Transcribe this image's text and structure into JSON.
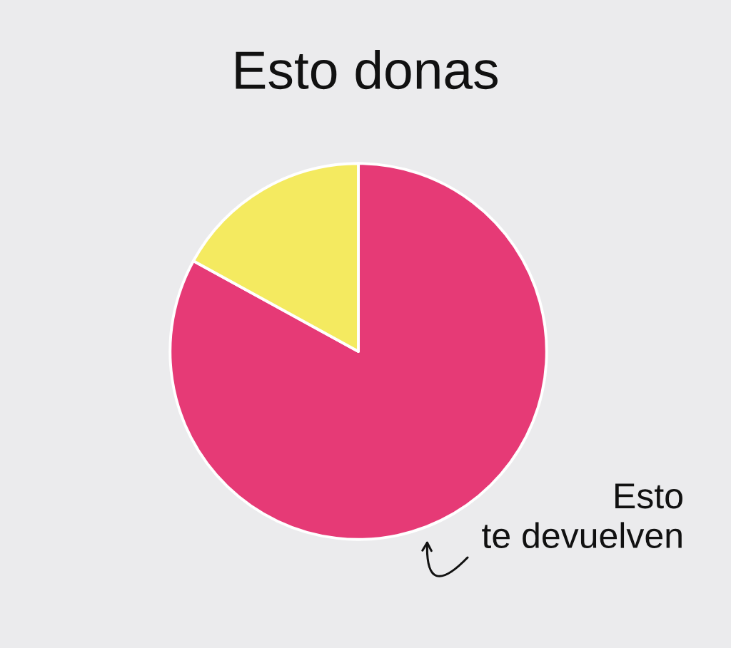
{
  "chart_data": {
    "type": "pie",
    "title": "Esto donas",
    "categories": [
      "Esto\nte devuelven",
      null
    ],
    "values": [
      83,
      17
    ],
    "colors": [
      "#e63a76",
      "#f4ea60"
    ]
  }
}
